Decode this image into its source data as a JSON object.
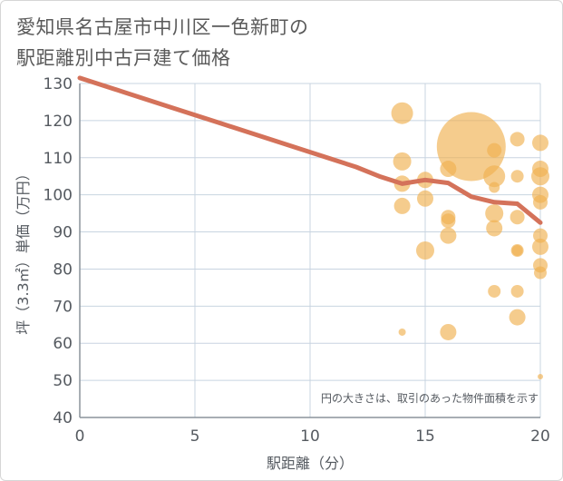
{
  "title_lines": [
    "愛知県名古屋市中川区一色新町の",
    "駅距離別中古戸建て価格"
  ],
  "chart_data": {
    "type": "scatter",
    "xlabel": "駅距離（分）",
    "ylabel": "坪（3.3㎡）単価（万円）",
    "xlim": [
      0,
      20
    ],
    "ylim": [
      40,
      130
    ],
    "xticks": [
      0,
      5,
      10,
      15,
      20
    ],
    "yticks": [
      40,
      50,
      60,
      70,
      80,
      90,
      100,
      110,
      120,
      130
    ],
    "annotation": "円の大きさは、取引のあった物件面積を示す",
    "colors": {
      "bubble": "#efb150",
      "line": "#d4725a",
      "grid": "#c8d4e0",
      "axis": "#8b939c"
    },
    "points": [
      {
        "x": 14,
        "y": 122,
        "size": 12
      },
      {
        "x": 14,
        "y": 109,
        "size": 10
      },
      {
        "x": 14,
        "y": 103,
        "size": 9
      },
      {
        "x": 14,
        "y": 97,
        "size": 9
      },
      {
        "x": 14,
        "y": 63,
        "size": 4
      },
      {
        "x": 15,
        "y": 104,
        "size": 9
      },
      {
        "x": 15,
        "y": 99,
        "size": 9
      },
      {
        "x": 15,
        "y": 85,
        "size": 10
      },
      {
        "x": 16,
        "y": 107,
        "size": 9
      },
      {
        "x": 16,
        "y": 94,
        "size": 8
      },
      {
        "x": 16,
        "y": 93,
        "size": 8
      },
      {
        "x": 16,
        "y": 89,
        "size": 9
      },
      {
        "x": 16,
        "y": 63,
        "size": 9
      },
      {
        "x": 17,
        "y": 113,
        "size": 38
      },
      {
        "x": 18,
        "y": 112,
        "size": 8
      },
      {
        "x": 18,
        "y": 105,
        "size": 12
      },
      {
        "x": 18,
        "y": 102,
        "size": 6
      },
      {
        "x": 18,
        "y": 95,
        "size": 10
      },
      {
        "x": 18,
        "y": 91,
        "size": 9
      },
      {
        "x": 18,
        "y": 74,
        "size": 7
      },
      {
        "x": 19,
        "y": 115,
        "size": 8
      },
      {
        "x": 19,
        "y": 105,
        "size": 7
      },
      {
        "x": 19,
        "y": 94,
        "size": 8
      },
      {
        "x": 19,
        "y": 85,
        "size": 7
      },
      {
        "x": 19,
        "y": 85,
        "size": 6
      },
      {
        "x": 19,
        "y": 74,
        "size": 7
      },
      {
        "x": 19,
        "y": 67,
        "size": 9
      },
      {
        "x": 20,
        "y": 114,
        "size": 9
      },
      {
        "x": 20,
        "y": 107,
        "size": 9
      },
      {
        "x": 20,
        "y": 105,
        "size": 10
      },
      {
        "x": 20,
        "y": 100,
        "size": 9
      },
      {
        "x": 20,
        "y": 98,
        "size": 8
      },
      {
        "x": 20,
        "y": 89,
        "size": 8
      },
      {
        "x": 20,
        "y": 86,
        "size": 9
      },
      {
        "x": 20,
        "y": 81,
        "size": 8
      },
      {
        "x": 20,
        "y": 79,
        "size": 7
      },
      {
        "x": 20,
        "y": 51,
        "size": 3
      }
    ],
    "trend": [
      {
        "x": 0,
        "y": 131.5
      },
      {
        "x": 2,
        "y": 127.5
      },
      {
        "x": 4,
        "y": 123.5
      },
      {
        "x": 6,
        "y": 119.5
      },
      {
        "x": 8,
        "y": 115.5
      },
      {
        "x": 10,
        "y": 111.5
      },
      {
        "x": 12,
        "y": 107.5
      },
      {
        "x": 13,
        "y": 105
      },
      {
        "x": 14,
        "y": 103
      },
      {
        "x": 15,
        "y": 104
      },
      {
        "x": 16,
        "y": 103.2
      },
      {
        "x": 17,
        "y": 99.5
      },
      {
        "x": 18,
        "y": 98
      },
      {
        "x": 19,
        "y": 97.6
      },
      {
        "x": 20,
        "y": 92.5
      }
    ]
  }
}
